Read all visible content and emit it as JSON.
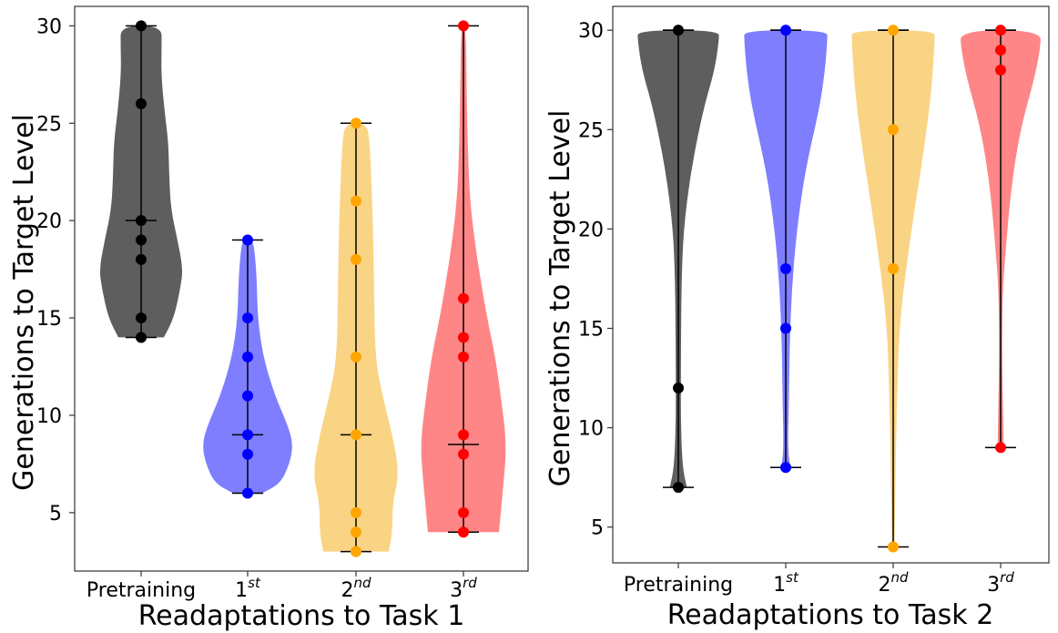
{
  "chart_data": [
    {
      "type": "violin",
      "xlabel": "Readaptations to Task 1",
      "ylabel": "Generations to Target Level",
      "ylim": [
        2,
        31
      ],
      "yticks": [
        5,
        10,
        15,
        20,
        25,
        30
      ],
      "grid": false,
      "categories": [
        {
          "base": "Pretraining",
          "sup": ""
        },
        {
          "base": "1",
          "sup": "st"
        },
        {
          "base": "2",
          "sup": "nd"
        },
        {
          "base": "3",
          "sup": "rd"
        }
      ],
      "series": [
        {
          "color": "#000000",
          "fill": "#555555",
          "min": 14,
          "max": 30,
          "median": 20,
          "points": [
            30,
            26,
            20,
            19,
            18,
            15,
            14
          ],
          "density": [
            [
              14,
              0.5
            ],
            [
              15,
              0.72
            ],
            [
              16.5,
              0.86
            ],
            [
              17.5,
              0.92
            ],
            [
              19,
              0.8
            ],
            [
              20.5,
              0.66
            ],
            [
              22,
              0.62
            ],
            [
              24,
              0.6
            ],
            [
              25.5,
              0.52
            ],
            [
              27.5,
              0.44
            ],
            [
              29,
              0.45
            ],
            [
              30,
              0.45
            ]
          ]
        },
        {
          "color": "#0000ff",
          "fill": "#7777ff",
          "min": 6,
          "max": 19,
          "median": 9,
          "points": [
            19,
            15,
            13,
            11,
            9,
            8,
            6
          ],
          "density": [
            [
              6,
              0.32
            ],
            [
              6.5,
              0.72
            ],
            [
              7.5,
              0.92
            ],
            [
              8.5,
              1.0
            ],
            [
              9.5,
              0.88
            ],
            [
              11,
              0.6
            ],
            [
              13,
              0.34
            ],
            [
              15,
              0.22
            ],
            [
              17,
              0.2
            ],
            [
              18.5,
              0.15
            ],
            [
              19,
              0.1
            ]
          ]
        },
        {
          "color": "#ffa500",
          "fill": "#fad27e",
          "min": 3,
          "max": 25,
          "median": 9,
          "points": [
            25,
            21,
            18,
            13,
            9,
            5,
            4,
            3
          ],
          "density": [
            [
              3,
              0.72
            ],
            [
              4,
              0.8
            ],
            [
              5.5,
              0.8
            ],
            [
              7,
              0.95
            ],
            [
              9,
              0.8
            ],
            [
              11,
              0.58
            ],
            [
              13,
              0.42
            ],
            [
              16,
              0.4
            ],
            [
              19,
              0.38
            ],
            [
              22,
              0.34
            ],
            [
              24,
              0.3
            ],
            [
              25,
              0.24
            ]
          ]
        },
        {
          "color": "#ff0000",
          "fill": "#ff8080",
          "min": 4,
          "max": 30,
          "median": 8.5,
          "points": [
            30,
            16,
            14,
            13,
            9,
            8,
            5,
            4
          ],
          "density": [
            [
              4,
              0.78
            ],
            [
              5,
              0.82
            ],
            [
              6.5,
              0.88
            ],
            [
              8.5,
              0.95
            ],
            [
              11,
              0.82
            ],
            [
              13,
              0.7
            ],
            [
              15,
              0.52
            ],
            [
              18,
              0.3
            ],
            [
              21,
              0.14
            ],
            [
              24,
              0.09
            ],
            [
              27,
              0.07
            ],
            [
              30,
              0.05
            ]
          ]
        }
      ]
    },
    {
      "type": "violin",
      "xlabel": "Readaptations to Task 2",
      "ylabel": "Generations to Target Level",
      "ylim": [
        3.2,
        31.2
      ],
      "yticks": [
        5,
        10,
        15,
        20,
        25,
        30
      ],
      "grid": false,
      "categories": [
        {
          "base": "Pretraining",
          "sup": ""
        },
        {
          "base": "1",
          "sup": "st"
        },
        {
          "base": "2",
          "sup": "nd"
        },
        {
          "base": "3",
          "sup": "rd"
        }
      ],
      "series": [
        {
          "color": "#000000",
          "fill": "#555555",
          "min": 7,
          "max": 30,
          "median": 30,
          "points": [
            30,
            12,
            7
          ],
          "density": [
            [
              7,
              0.2
            ],
            [
              8,
              0.1
            ],
            [
              10,
              0.06
            ],
            [
              13,
              0.06
            ],
            [
              17,
              0.07
            ],
            [
              20,
              0.12
            ],
            [
              23,
              0.3
            ],
            [
              26,
              0.58
            ],
            [
              28,
              0.85
            ],
            [
              29.5,
              0.95
            ],
            [
              30,
              0.95
            ]
          ]
        },
        {
          "color": "#0000ff",
          "fill": "#7777ff",
          "min": 8,
          "max": 30,
          "median": 30,
          "points": [
            30,
            18,
            15,
            8
          ],
          "density": [
            [
              8,
              0.1
            ],
            [
              9,
              0.05
            ],
            [
              11,
              0.07
            ],
            [
              14,
              0.09
            ],
            [
              17,
              0.14
            ],
            [
              20,
              0.26
            ],
            [
              23,
              0.46
            ],
            [
              26,
              0.78
            ],
            [
              28,
              0.92
            ],
            [
              29.5,
              0.97
            ],
            [
              30,
              0.97
            ]
          ]
        },
        {
          "color": "#ffa500",
          "fill": "#fad27e",
          "min": 4,
          "max": 30,
          "median": 30,
          "points": [
            30,
            25,
            18,
            4
          ],
          "density": [
            [
              4,
              0.03
            ],
            [
              7,
              0.05
            ],
            [
              11,
              0.08
            ],
            [
              15,
              0.14
            ],
            [
              18,
              0.3
            ],
            [
              21,
              0.5
            ],
            [
              24,
              0.72
            ],
            [
              27,
              0.9
            ],
            [
              29.5,
              0.97
            ],
            [
              30,
              0.97
            ]
          ]
        },
        {
          "color": "#ff0000",
          "fill": "#ff8080",
          "min": 9,
          "max": 30,
          "median": 30,
          "points": [
            30,
            29,
            28,
            9
          ],
          "density": [
            [
              9,
              0.07
            ],
            [
              10.5,
              0.06
            ],
            [
              14,
              0.03
            ],
            [
              17,
              0.05
            ],
            [
              19,
              0.12
            ],
            [
              22,
              0.24
            ],
            [
              25,
              0.46
            ],
            [
              27.5,
              0.78
            ],
            [
              29,
              0.92
            ],
            [
              30,
              0.95
            ]
          ]
        }
      ]
    }
  ]
}
